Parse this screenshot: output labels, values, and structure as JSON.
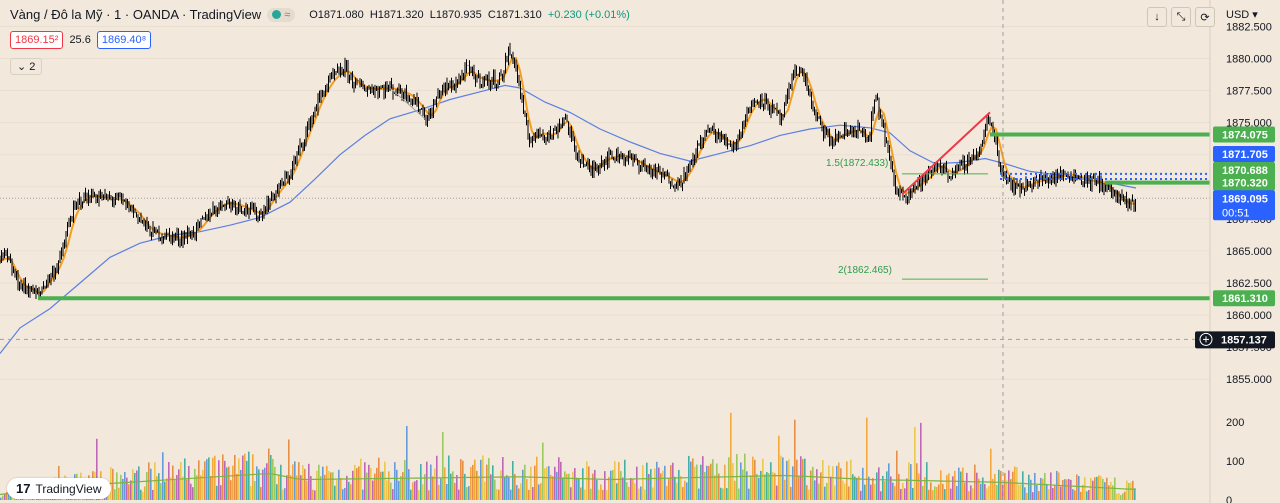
{
  "header": {
    "title": "Vàng / Đô la Mỹ · 1 · OANDA · TradingView",
    "open": "O1871.080",
    "high": "H1871.320",
    "low": "L1870.935",
    "close": "C1871.310",
    "change": "+0.230 (+0.01%)",
    "sell_price": "1869.15²",
    "spread": "25.6",
    "buy_price": "1869.40⁸",
    "indicator_count": "2",
    "currency": "USD",
    "currency_caret": "▾"
  },
  "toolbar_icons": [
    "arrow-down-icon",
    "collapse-icon",
    "refresh-icon"
  ],
  "logo_text": "TradingView",
  "colors": {
    "background": "#f2e9dc",
    "candle": "#000000",
    "ema_fast": "#f59d20",
    "ema_slow": "#5b7fe3",
    "level": "#4caf50",
    "current_price": "#2962ff",
    "crosshair_label": "#131722",
    "trend_line": "#f23645"
  },
  "chart_data": {
    "type": "candlestick",
    "title": "",
    "ylim": [
      1854,
      1883
    ],
    "y_ticks": [
      {
        "value": 1882.5,
        "label": "1882.500"
      },
      {
        "value": 1880.0,
        "label": "1880.000"
      },
      {
        "value": 1877.5,
        "label": "1877.500"
      },
      {
        "value": 1875.0,
        "label": "1875.000"
      },
      {
        "value": 1872.5,
        "label": "1872.500"
      },
      {
        "value": 1870.0,
        "label": "1870.000"
      },
      {
        "value": 1867.5,
        "label": "1867.500"
      },
      {
        "value": 1865.0,
        "label": "1865.000"
      },
      {
        "value": 1862.5,
        "label": "1862.500"
      },
      {
        "value": 1860.0,
        "label": "1860.000"
      },
      {
        "value": 1857.5,
        "label": "1857.500"
      },
      {
        "value": 1855.0,
        "label": "1855.000"
      }
    ],
    "price_path": [
      [
        0,
        1864.2
      ],
      [
        5,
        1864.8
      ],
      [
        12,
        1863.5
      ],
      [
        20,
        1862.3
      ],
      [
        30,
        1862.0
      ],
      [
        38,
        1861.5
      ],
      [
        45,
        1862.5
      ],
      [
        55,
        1863.5
      ],
      [
        62,
        1864.8
      ],
      [
        70,
        1867.5
      ],
      [
        80,
        1869.0
      ],
      [
        92,
        1869.3
      ],
      [
        105,
        1869.1
      ],
      [
        120,
        1869.0
      ],
      [
        135,
        1868.0
      ],
      [
        150,
        1866.5
      ],
      [
        165,
        1866.2
      ],
      [
        180,
        1866.0
      ],
      [
        195,
        1866.5
      ],
      [
        210,
        1868.0
      ],
      [
        225,
        1868.8
      ],
      [
        240,
        1868.5
      ],
      [
        260,
        1867.8
      ],
      [
        275,
        1869.5
      ],
      [
        290,
        1871.0
      ],
      [
        305,
        1874.0
      ],
      [
        320,
        1877.0
      ],
      [
        332,
        1878.5
      ],
      [
        345,
        1879.2
      ],
      [
        355,
        1878.0
      ],
      [
        370,
        1877.6
      ],
      [
        390,
        1877.7
      ],
      [
        408,
        1877.2
      ],
      [
        420,
        1876.2
      ],
      [
        428,
        1875.2
      ],
      [
        440,
        1877.5
      ],
      [
        455,
        1878.0
      ],
      [
        468,
        1879.2
      ],
      [
        475,
        1878.5
      ],
      [
        490,
        1878.2
      ],
      [
        502,
        1878.5
      ],
      [
        508,
        1880.5
      ],
      [
        514,
        1880.0
      ],
      [
        520,
        1877.5
      ],
      [
        528,
        1873.7
      ],
      [
        540,
        1874.2
      ],
      [
        552,
        1874.0
      ],
      [
        565,
        1875.5
      ],
      [
        575,
        1872.8
      ],
      [
        590,
        1871.2
      ],
      [
        605,
        1872.2
      ],
      [
        620,
        1872.5
      ],
      [
        635,
        1872.0
      ],
      [
        650,
        1871.3
      ],
      [
        665,
        1870.8
      ],
      [
        678,
        1870.2
      ],
      [
        690,
        1871.5
      ],
      [
        700,
        1873.5
      ],
      [
        710,
        1874.5
      ],
      [
        720,
        1873.8
      ],
      [
        735,
        1873.2
      ],
      [
        748,
        1876.0
      ],
      [
        760,
        1877.0
      ],
      [
        770,
        1876.2
      ],
      [
        782,
        1875.2
      ],
      [
        795,
        1879.3
      ],
      [
        805,
        1878.5
      ],
      [
        815,
        1875.5
      ],
      [
        830,
        1873.5
      ],
      [
        845,
        1874.2
      ],
      [
        858,
        1874.5
      ],
      [
        868,
        1873.5
      ],
      [
        876,
        1877.0
      ],
      [
        885,
        1874.0
      ],
      [
        895,
        1869.8
      ],
      [
        905,
        1869.4
      ],
      [
        918,
        1870.2
      ],
      [
        928,
        1870.8
      ],
      [
        938,
        1871.8
      ],
      [
        948,
        1871.0
      ],
      [
        958,
        1871.3
      ],
      [
        970,
        1872.2
      ],
      [
        980,
        1872.8
      ],
      [
        988,
        1875.3
      ],
      [
        995,
        1874.0
      ],
      [
        1000,
        1871.5
      ],
      [
        1008,
        1870.6
      ],
      [
        1018,
        1869.8
      ],
      [
        1030,
        1870.3
      ],
      [
        1045,
        1870.6
      ],
      [
        1058,
        1870.8
      ],
      [
        1068,
        1871.0
      ],
      [
        1080,
        1870.7
      ],
      [
        1092,
        1870.4
      ],
      [
        1102,
        1870.3
      ],
      [
        1112,
        1869.6
      ],
      [
        1120,
        1869.0
      ],
      [
        1128,
        1868.6
      ],
      [
        1136,
        1868.8
      ]
    ],
    "ema_slow_path": [
      [
        0,
        1857.0
      ],
      [
        20,
        1859.0
      ],
      [
        50,
        1860.5
      ],
      [
        80,
        1862.5
      ],
      [
        110,
        1864.5
      ],
      [
        140,
        1865.6
      ],
      [
        170,
        1866.2
      ],
      [
        200,
        1866.5
      ],
      [
        230,
        1867.0
      ],
      [
        260,
        1867.6
      ],
      [
        290,
        1868.8
      ],
      [
        315,
        1870.6
      ],
      [
        340,
        1872.5
      ],
      [
        365,
        1874.0
      ],
      [
        390,
        1875.3
      ],
      [
        420,
        1876.0
      ],
      [
        450,
        1876.8
      ],
      [
        480,
        1877.4
      ],
      [
        505,
        1877.9
      ],
      [
        520,
        1877.7
      ],
      [
        545,
        1876.6
      ],
      [
        570,
        1875.8
      ],
      [
        600,
        1874.5
      ],
      [
        630,
        1873.5
      ],
      [
        660,
        1872.6
      ],
      [
        690,
        1872.0
      ],
      [
        720,
        1872.6
      ],
      [
        750,
        1873.2
      ],
      [
        780,
        1874.0
      ],
      [
        810,
        1874.5
      ],
      [
        840,
        1874.8
      ],
      [
        870,
        1874.6
      ],
      [
        890,
        1874.2
      ],
      [
        910,
        1872.8
      ],
      [
        935,
        1871.8
      ],
      [
        960,
        1871.9
      ],
      [
        985,
        1872.2
      ],
      [
        1005,
        1871.8
      ],
      [
        1030,
        1871.2
      ],
      [
        1060,
        1870.9
      ],
      [
        1090,
        1870.5
      ],
      [
        1110,
        1870.3
      ],
      [
        1136,
        1869.9
      ]
    ],
    "levels": [
      {
        "value": 1874.075,
        "label": "1874.075",
        "x_start": 990
      },
      {
        "value": 1870.32,
        "label": "1870.320",
        "x_start": 1105
      },
      {
        "value": 1861.31,
        "label": "1861.310",
        "x_start": 38
      }
    ],
    "dotted_levels": [
      {
        "value": 1871.705,
        "label": "1871.705"
      },
      {
        "value": 1870.688,
        "label": "1870.688"
      }
    ],
    "current_price": {
      "value": "1869.095",
      "countdown": "00:51",
      "y": 1869.1
    },
    "crosshair": {
      "x": 1003,
      "y": 1858.1,
      "label": "1857.137"
    },
    "fib": [
      {
        "label": "1.5(1872.433)",
        "value": 1871.0,
        "x_from": 902,
        "x_to": 988
      },
      {
        "label": "2(1862.465)",
        "value": 1862.8,
        "x_from": 902,
        "x_to": 988
      }
    ],
    "trend_line": {
      "x1": 902,
      "y1": 1869.4,
      "x2": 990,
      "y2": 1875.8
    },
    "volume": {
      "ticks": [
        {
          "value": 200,
          "label": "200"
        },
        {
          "value": 100,
          "label": "100"
        },
        {
          "value": 0,
          "label": "0"
        }
      ],
      "peaks": [
        [
          0,
          40
        ],
        [
          65,
          100
        ],
        [
          270,
          195
        ],
        [
          300,
          150
        ],
        [
          520,
          170
        ],
        [
          610,
          150
        ],
        [
          785,
          180
        ],
        [
          870,
          150
        ],
        [
          1000,
          130
        ],
        [
          1128,
          80
        ]
      ]
    }
  }
}
